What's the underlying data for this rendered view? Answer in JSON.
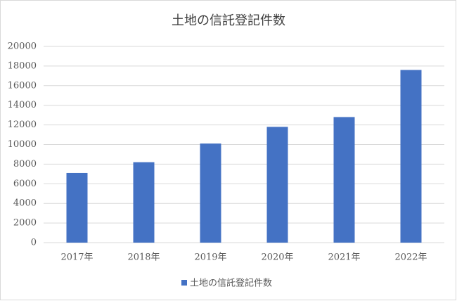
{
  "chart_data": {
    "type": "bar",
    "title": "土地の信託登記件数",
    "categories": [
      "2017年",
      "2018年",
      "2019年",
      "2020年",
      "2021年",
      "2022年"
    ],
    "series": [
      {
        "name": "土地の信託登記件数",
        "color": "#4472c4",
        "values": [
          7100,
          8200,
          10100,
          11800,
          12800,
          17600
        ]
      }
    ],
    "ylim": [
      0,
      20000
    ],
    "yticks": [
      0,
      2000,
      4000,
      6000,
      8000,
      10000,
      12000,
      14000,
      16000,
      18000,
      20000
    ],
    "grid": true,
    "legend": "bottom"
  }
}
